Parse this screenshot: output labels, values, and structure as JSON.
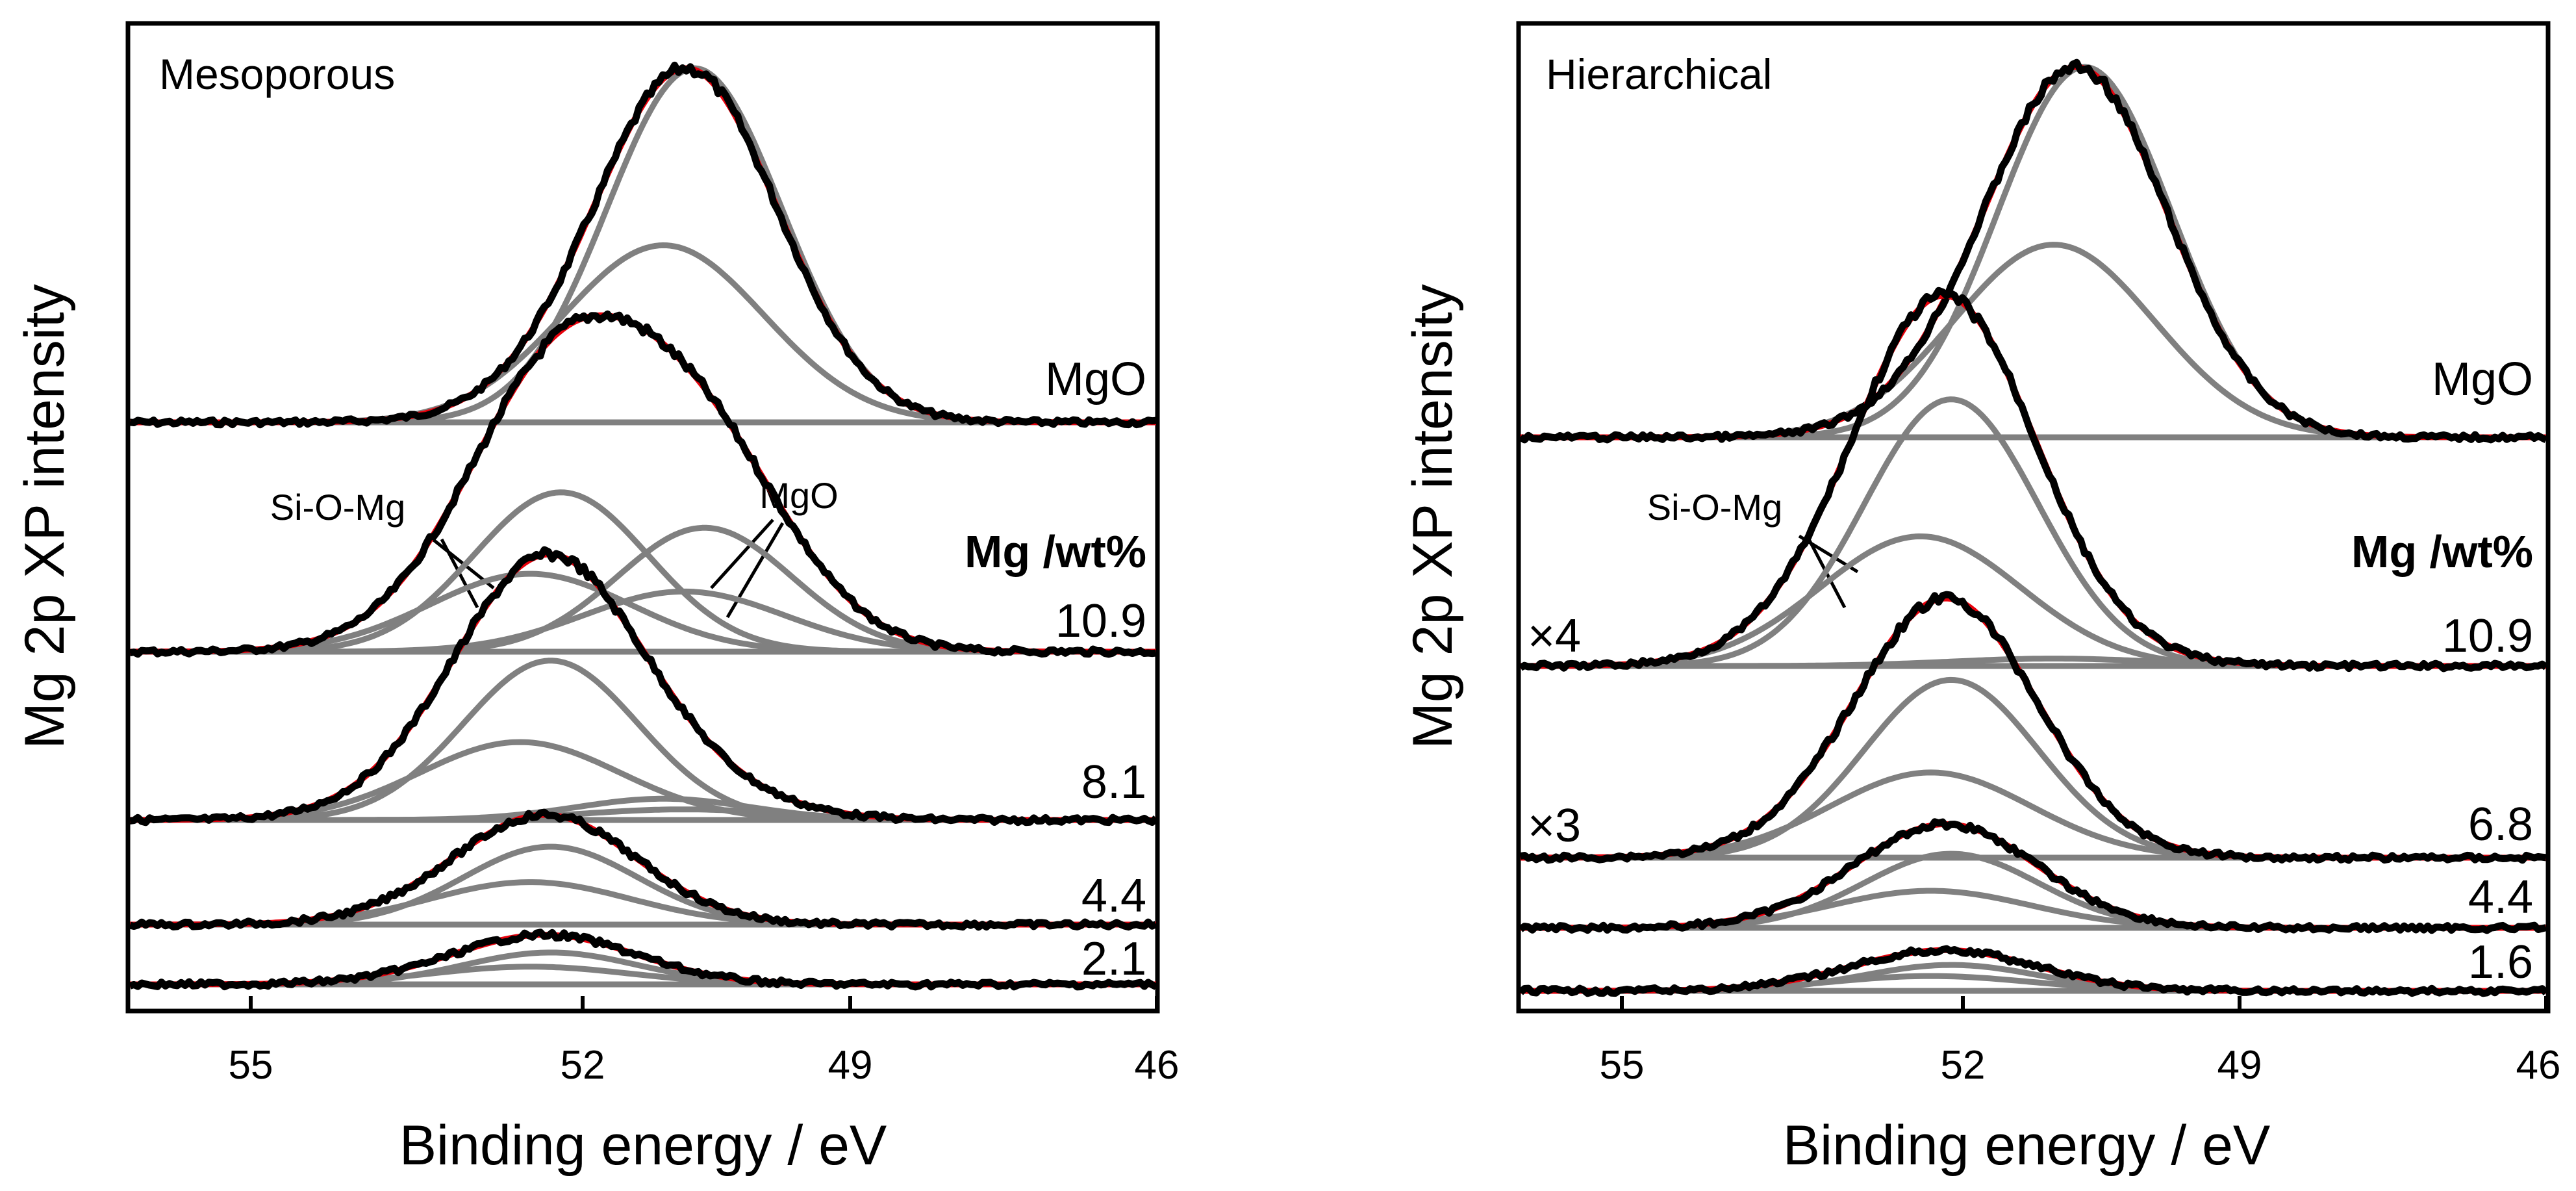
{
  "colors": {
    "raw_line": "#000000",
    "fit_line": "#e8000b",
    "component_line": "#808080",
    "background": "#ffffff"
  },
  "chart_data": [
    {
      "type": "line",
      "title": "Mesoporous",
      "xlabel": "Binding energy / eV",
      "ylabel": "Mg 2p XP intensity",
      "x_reversed": true,
      "xlim": [
        56,
        46
      ],
      "x_ticks": [
        "55",
        "52",
        "49",
        "46"
      ],
      "column_header": "Mg /wt%",
      "spectra": [
        {
          "label": "MgO",
          "scale": "",
          "components": [
            {
              "center": 50.5,
              "fwhm": 2.0,
              "height": 1.0
            },
            {
              "center": 50.8,
              "fwhm": 2.3,
              "height": 0.5
            }
          ],
          "fit_height": 1.0
        },
        {
          "label": "10.9",
          "scale": "",
          "components": [
            {
              "center": 51.8,
              "fwhm": 2.0,
              "height": 0.45
            },
            {
              "center": 52.1,
              "fwhm": 2.3,
              "height": 0.22
            },
            {
              "center": 50.4,
              "fwhm": 2.0,
              "height": 0.35
            },
            {
              "center": 50.6,
              "fwhm": 2.3,
              "height": 0.17
            }
          ],
          "fit_height": 0.95
        },
        {
          "label": "8.1",
          "scale": "",
          "components": [
            {
              "center": 51.9,
              "fwhm": 2.0,
              "height": 0.45
            },
            {
              "center": 52.2,
              "fwhm": 2.3,
              "height": 0.22
            },
            {
              "center": 50.8,
              "fwhm": 2.0,
              "height": 0.06
            },
            {
              "center": 50.6,
              "fwhm": 2.3,
              "height": 0.03
            }
          ],
          "fit_height": 0.75
        },
        {
          "label": "4.4",
          "scale": "",
          "components": [
            {
              "center": 51.9,
              "fwhm": 2.0,
              "height": 0.22
            },
            {
              "center": 52.1,
              "fwhm": 2.3,
              "height": 0.12
            }
          ],
          "fit_height": 0.31
        },
        {
          "label": "2.1",
          "scale": "",
          "components": [
            {
              "center": 51.9,
              "fwhm": 2.0,
              "height": 0.09
            },
            {
              "center": 52.1,
              "fwhm": 2.3,
              "height": 0.05
            }
          ],
          "fit_height": 0.14
        }
      ],
      "annotations": [
        {
          "text": "Si-O-Mg",
          "points_to": "Si-O-Mg components of 10.9 wt% spectrum"
        },
        {
          "text": "MgO",
          "points_to": "MgO components of 10.9 wt% spectrum"
        }
      ]
    },
    {
      "type": "line",
      "title": "Hierarchical",
      "xlabel": "Binding energy / eV",
      "ylabel": "Mg 2p XP intensity",
      "x_reversed": true,
      "xlim": [
        56,
        46
      ],
      "x_ticks": [
        "55",
        "52",
        "49",
        "46"
      ],
      "column_header": "Mg /wt%",
      "spectra": [
        {
          "label": "MgO",
          "scale": "",
          "components": [
            {
              "center": 50.5,
              "fwhm": 2.0,
              "height": 1.0
            },
            {
              "center": 50.8,
              "fwhm": 2.3,
              "height": 0.52
            }
          ],
          "fit_height": 1.0
        },
        {
          "label": "10.9",
          "scale": "×4",
          "components": [
            {
              "center": 51.8,
              "fwhm": 2.0,
              "height": 0.72
            },
            {
              "center": 52.1,
              "fwhm": 2.3,
              "height": 0.35
            },
            {
              "center": 50.8,
              "fwhm": 2.3,
              "height": 0.02
            }
          ],
          "fit_height": 1.0
        },
        {
          "label": "6.8",
          "scale": "×3",
          "components": [
            {
              "center": 51.8,
              "fwhm": 2.0,
              "height": 0.48
            },
            {
              "center": 52.0,
              "fwhm": 2.3,
              "height": 0.23
            }
          ],
          "fit_height": 0.7
        },
        {
          "label": "4.4",
          "scale": "",
          "components": [
            {
              "center": 51.8,
              "fwhm": 2.0,
              "height": 0.2
            },
            {
              "center": 52.0,
              "fwhm": 2.3,
              "height": 0.1
            }
          ],
          "fit_height": 0.28
        },
        {
          "label": "1.6",
          "scale": "",
          "components": [
            {
              "center": 51.8,
              "fwhm": 2.0,
              "height": 0.07
            },
            {
              "center": 52.0,
              "fwhm": 2.3,
              "height": 0.04
            }
          ],
          "fit_height": 0.11
        }
      ],
      "annotations": [
        {
          "text": "Si-O-Mg",
          "points_to": "Si-O-Mg components of 10.9 wt% spectrum"
        }
      ]
    }
  ]
}
